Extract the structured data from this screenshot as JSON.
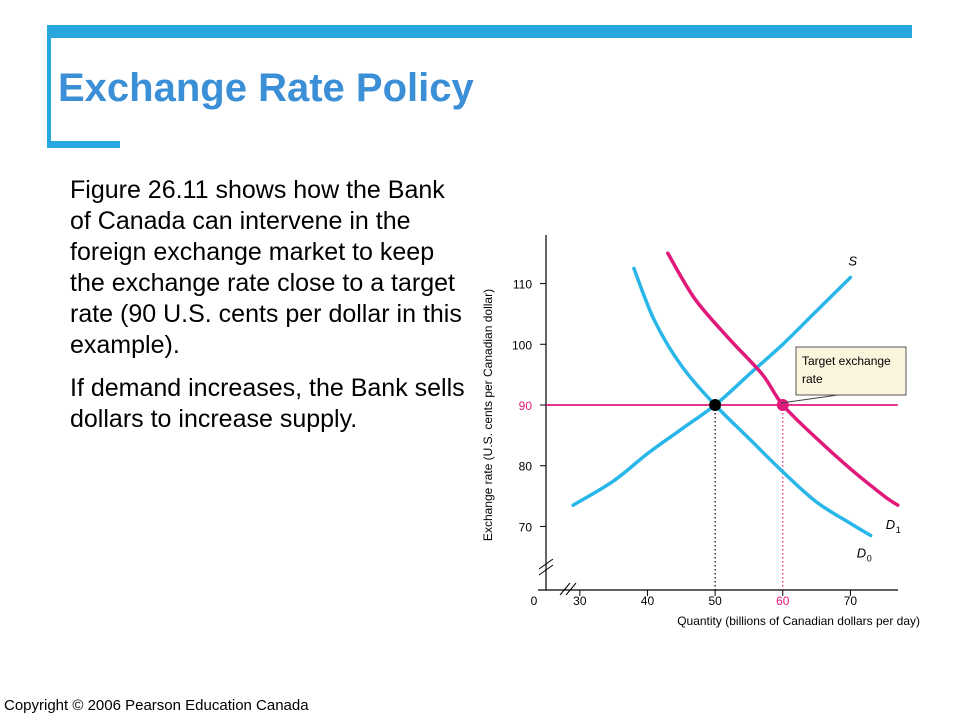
{
  "slide": {
    "title": "Exchange Rate Policy",
    "paragraphs": [
      "Figure 26.11 shows how the Bank of Canada can intervene in the foreign exchange market to keep the exchange rate close to a target rate (90 U.S. cents per dollar in this example).",
      "If demand increases, the Bank sells dollars to increase supply."
    ],
    "copyright": "Copyright © 2006 Pearson Education Canada"
  },
  "colors": {
    "accent_bar": "#29a8e0",
    "title": "#3a8fd6",
    "cyan_curves": "#29b6e8",
    "magenta": "#e0197a"
  },
  "chart_data": {
    "type": "line",
    "xlabel": "Quantity (billions of Canadian dollars per day)",
    "ylabel": "Exchange rate (U.S. cents per Canadian dollar)",
    "origin_label": "0",
    "x_ticks": [
      {
        "value": 30,
        "label": "30",
        "highlight": false
      },
      {
        "value": 40,
        "label": "40",
        "highlight": false
      },
      {
        "value": 50,
        "label": "50",
        "highlight": false
      },
      {
        "value": 60,
        "label": "60",
        "highlight": true
      },
      {
        "value": 70,
        "label": "70",
        "highlight": false
      }
    ],
    "y_ticks": [
      {
        "value": 70,
        "label": "70",
        "highlight": false
      },
      {
        "value": 80,
        "label": "80",
        "highlight": false
      },
      {
        "value": 90,
        "label": "90",
        "highlight": true
      },
      {
        "value": 100,
        "label": "100",
        "highlight": false
      },
      {
        "value": 110,
        "label": "110",
        "highlight": false
      }
    ],
    "xlim": [
      25,
      76
    ],
    "ylim": [
      62,
      118
    ],
    "axis_breaks": true,
    "series": [
      {
        "name": "S",
        "label": "S",
        "label_sub": "",
        "color": "#29b6e8",
        "points": [
          [
            29,
            73.5
          ],
          [
            35,
            77.5
          ],
          [
            40,
            82
          ],
          [
            45,
            86
          ],
          [
            50,
            90
          ],
          [
            55,
            95
          ],
          [
            60,
            100
          ],
          [
            65,
            105.5
          ],
          [
            70,
            111
          ]
        ]
      },
      {
        "name": "D0",
        "label": "D",
        "label_sub": "0",
        "color": "#29b6e8",
        "points": [
          [
            38,
            112.5
          ],
          [
            41,
            104
          ],
          [
            45,
            96.5
          ],
          [
            50,
            90
          ],
          [
            55,
            84.5
          ],
          [
            60,
            79
          ],
          [
            65,
            74
          ],
          [
            70,
            70.5
          ],
          [
            73,
            68.5
          ]
        ]
      },
      {
        "name": "D1",
        "label": "D",
        "label_sub": "1",
        "color": "#e0197a",
        "points": [
          [
            43,
            115
          ],
          [
            47,
            107.5
          ],
          [
            52,
            101
          ],
          [
            57,
            95
          ],
          [
            60,
            90
          ],
          [
            65,
            84.5
          ],
          [
            70,
            79.5
          ],
          [
            75,
            75
          ],
          [
            77,
            73.5
          ]
        ]
      }
    ],
    "target_line": {
      "y": 90,
      "x_start": 25,
      "x_end": 77,
      "color": "#e0197a"
    },
    "equilibria": [
      {
        "x": 50,
        "y": 90,
        "color": "#000000"
      },
      {
        "x": 60,
        "y": 90,
        "color": "#e0197a"
      }
    ],
    "annotation": {
      "lines": [
        "Target exchange",
        "rate"
      ],
      "fill": "#fbf5de",
      "points_to": [
        59,
        90
      ]
    }
  }
}
